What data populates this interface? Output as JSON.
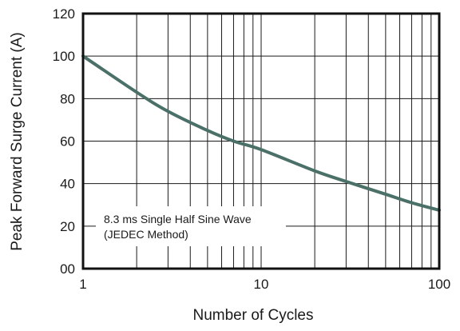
{
  "chart_data": {
    "type": "line",
    "title": "",
    "xlabel": "Number of Cycles",
    "ylabel": "Peak Forward Surge Current (A)",
    "x_scale": "log",
    "xlim": [
      1,
      100
    ],
    "ylim": [
      0,
      120
    ],
    "x_ticks": [
      "1",
      "10",
      "100"
    ],
    "y_ticks": [
      "120",
      "100",
      "80",
      "60",
      "40",
      "20",
      "00"
    ],
    "grid": true,
    "series": [
      {
        "x": [
          1,
          2,
          3,
          5,
          7,
          10,
          20,
          30,
          50,
          70,
          100
        ],
        "y": [
          100,
          83,
          74,
          65,
          60,
          56,
          46,
          41,
          35,
          31,
          27.5
        ]
      }
    ],
    "annotation": {
      "line1": "8.3 ms Single Half Sine Wave",
      "line2": "(JEDEC Method)"
    },
    "colors": {
      "curve": "#4a7068",
      "grid": "#1a1a1a",
      "frame": "#111111"
    }
  }
}
